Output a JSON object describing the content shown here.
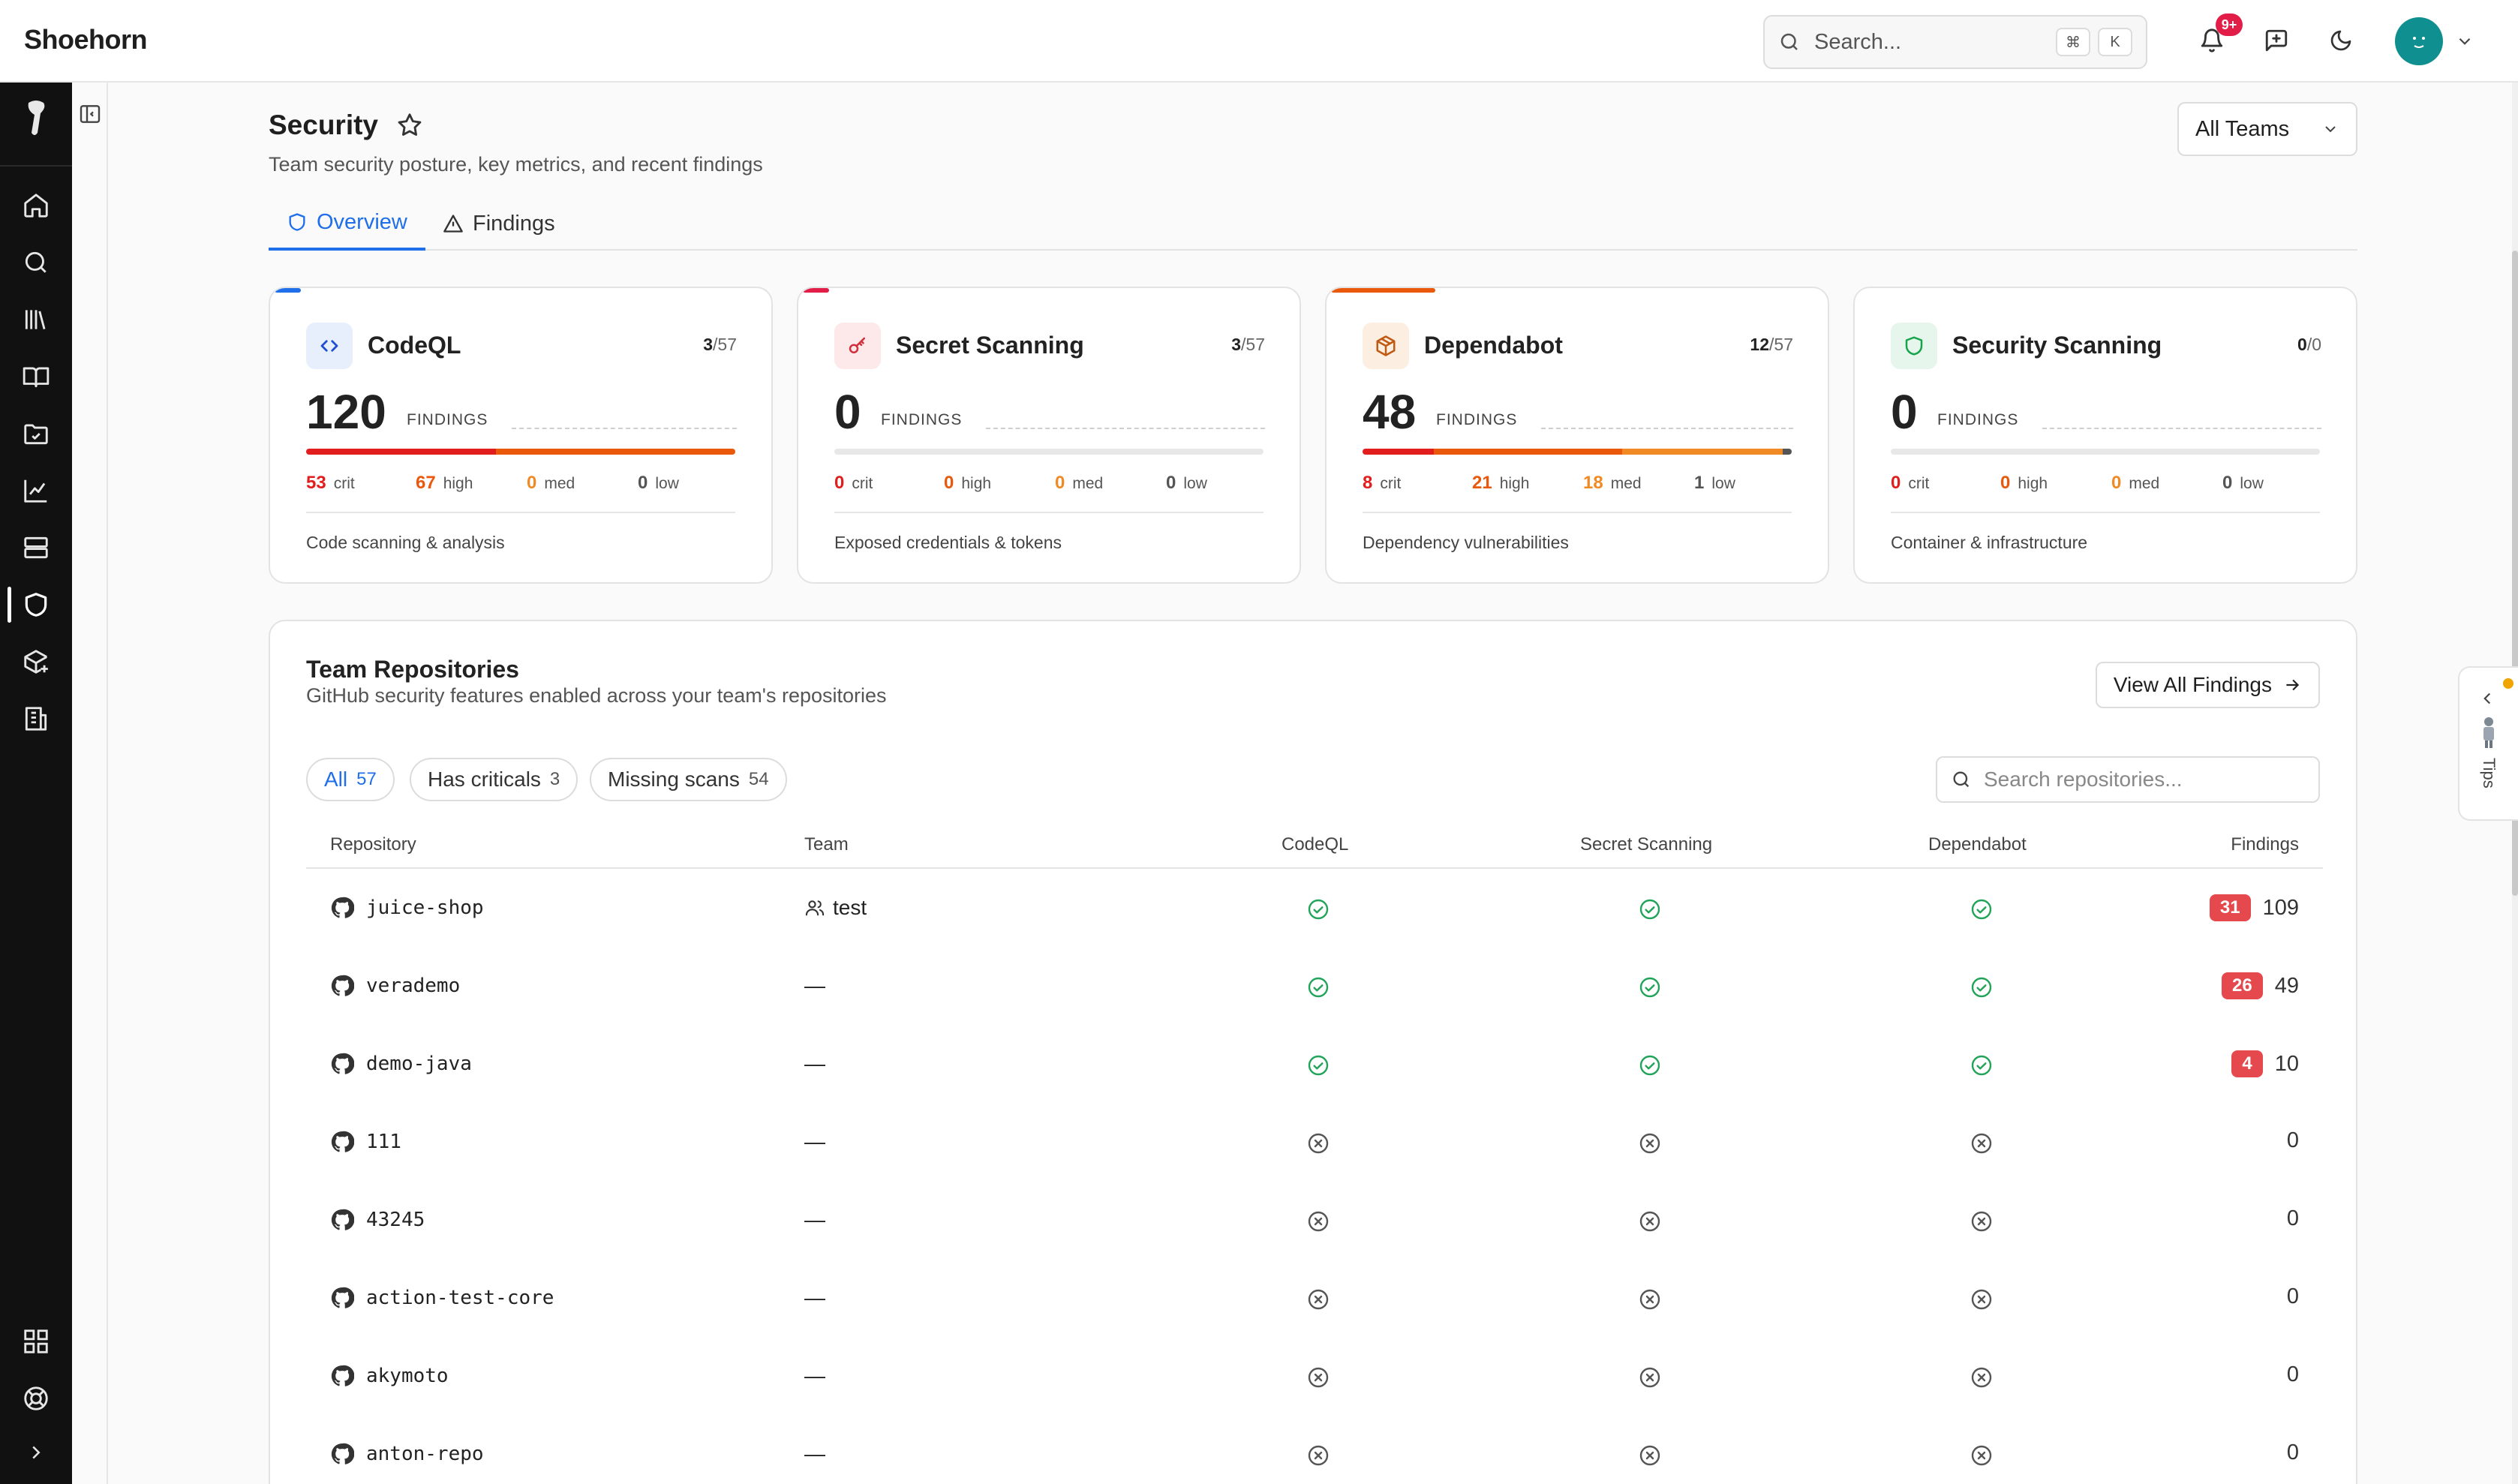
{
  "app": {
    "name": "Shoehorn",
    "search_placeholder": "Search...",
    "search_shortcut": [
      "⌘",
      "K"
    ],
    "notification_count": "9+"
  },
  "rail": {
    "items": [
      "home-icon",
      "search-icon",
      "library-icon",
      "book-icon",
      "folder-check-icon",
      "chart-icon",
      "server-icon",
      "shield-icon",
      "package-plus-icon",
      "building-icon"
    ],
    "active": "shield-icon",
    "bottom": [
      "grid-icon",
      "help-icon",
      "expand-icon"
    ]
  },
  "page": {
    "title": "Security",
    "subtitle": "Team security posture, key metrics, and recent findings",
    "team_select": "All Teams",
    "tabs": [
      {
        "label": "Overview",
        "active": true
      },
      {
        "label": "Findings",
        "active": false
      }
    ]
  },
  "cards": [
    {
      "name": "CodeQL",
      "ratio_num": "3",
      "ratio_den": "/57",
      "count": "120",
      "findings_label": "FINDINGS",
      "crit": "53",
      "high": "67",
      "med": "0",
      "low": "0",
      "desc": "Code scanning & analysis",
      "accent": "#1f6feb",
      "icon_bg": "#e8effc",
      "icon_color": "#1f4fd1"
    },
    {
      "name": "Secret Scanning",
      "ratio_num": "3",
      "ratio_den": "/57",
      "count": "0",
      "findings_label": "FINDINGS",
      "crit": "0",
      "high": "0",
      "med": "0",
      "low": "0",
      "desc": "Exposed credentials & tokens",
      "accent": "#e11d48",
      "icon_bg": "#fde8ea",
      "icon_color": "#d0303c"
    },
    {
      "name": "Dependabot",
      "ratio_num": "12",
      "ratio_den": "/57",
      "count": "48",
      "findings_label": "FINDINGS",
      "crit": "8",
      "high": "21",
      "med": "18",
      "low": "1",
      "desc": "Dependency vulnerabilities",
      "accent": "#ea580c",
      "icon_bg": "#fdeee2",
      "icon_color": "#c05a12"
    },
    {
      "name": "Security Scanning",
      "ratio_num": "0",
      "ratio_den": "/0",
      "count": "0",
      "findings_label": "FINDINGS",
      "crit": "0",
      "high": "0",
      "med": "0",
      "low": "0",
      "desc": "Container & infrastructure",
      "accent": "#16a34a",
      "icon_bg": "#e6f6ec",
      "icon_color": "#16a34a"
    }
  ],
  "severity_labels": {
    "crit": "crit",
    "high": "high",
    "med": "med",
    "low": "low"
  },
  "severity_colors": {
    "crit": "#e11d1d",
    "high": "#ea580c",
    "med": "#f08a24",
    "low": "#555555"
  },
  "repos": {
    "title": "Team Repositories",
    "subtitle": "GitHub security features enabled across your team's repositories",
    "view_all": "View All Findings",
    "filters": [
      {
        "label": "All",
        "count": "57",
        "active": true
      },
      {
        "label": "Has criticals",
        "count": "3",
        "active": false
      },
      {
        "label": "Missing scans",
        "count": "54",
        "active": false
      }
    ],
    "search_placeholder": "Search repositories...",
    "columns": [
      "Repository",
      "Team",
      "CodeQL",
      "Secret Scanning",
      "Dependabot",
      "Findings"
    ],
    "rows": [
      {
        "name": "juice-shop",
        "team": "test",
        "codeql": "enabled",
        "secret": "enabled",
        "dependabot": "enabled",
        "crit": "31",
        "total": "109"
      },
      {
        "name": "verademo",
        "team": "—",
        "codeql": "enabled",
        "secret": "enabled",
        "dependabot": "enabled",
        "crit": "26",
        "total": "49"
      },
      {
        "name": "demo-java",
        "team": "—",
        "codeql": "enabled",
        "secret": "enabled",
        "dependabot": "enabled",
        "crit": "4",
        "total": "10"
      },
      {
        "name": "111",
        "team": "—",
        "codeql": "disabled",
        "secret": "disabled",
        "dependabot": "disabled",
        "crit": "",
        "total": "0"
      },
      {
        "name": "43245",
        "team": "—",
        "codeql": "disabled",
        "secret": "disabled",
        "dependabot": "disabled",
        "crit": "",
        "total": "0"
      },
      {
        "name": "action-test-core",
        "team": "—",
        "codeql": "disabled",
        "secret": "disabled",
        "dependabot": "disabled",
        "crit": "",
        "total": "0"
      },
      {
        "name": "akymoto",
        "team": "—",
        "codeql": "disabled",
        "secret": "disabled",
        "dependabot": "disabled",
        "crit": "",
        "total": "0"
      },
      {
        "name": "anton-repo",
        "team": "—",
        "codeql": "disabled",
        "secret": "disabled",
        "dependabot": "disabled",
        "crit": "",
        "total": "0"
      }
    ]
  },
  "tips": {
    "label": "Tips"
  }
}
